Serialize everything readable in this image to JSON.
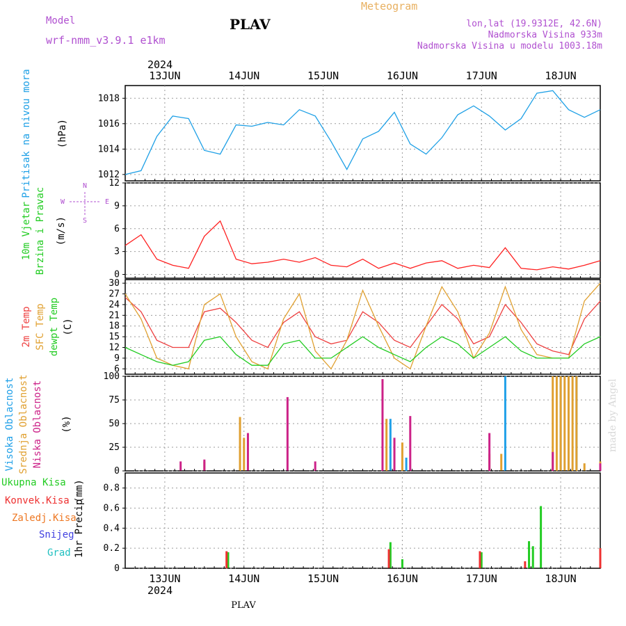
{
  "header": {
    "model_label": "Model",
    "model_name": "wrf-nmm_v3.9.1 e1km",
    "location": "PLAV",
    "title": "Meteogram",
    "coords": "lon,lat (19.9312E, 42.6N)",
    "elevation": "Nadmorska Visina 933m",
    "model_elevation": "Nadmorska Visina u modelu 1003.18m",
    "year": "2024",
    "footer_location": "PLAV",
    "watermark": "made by Angel"
  },
  "colors": {
    "pressure": "#1ea0e6",
    "wind_label": "#22cc22",
    "wind_speed": "#ff2020",
    "temp2m": "#ee4040",
    "sfc_temp": "#e0a030",
    "dewpoint": "#22cc22",
    "cloud_high": "#20a0e8",
    "cloud_mid": "#e0a030",
    "cloud_low": "#cc2288",
    "precip_total": "#22cc22",
    "precip_conv": "#ee3030",
    "precip_grid": "#ee7722",
    "snow": "#4040e0",
    "hail": "#20c0c0",
    "header_purple": "#b050d0",
    "header_orange": "#e8b060"
  },
  "chart_data": [
    {
      "type": "line",
      "panel": "pressure",
      "xlabel": "",
      "ylabel_main": "Pritisak na nivou mora",
      "ylabel_unit": "(hPa)",
      "ylim": [
        1011.5,
        1019
      ],
      "yticks": [
        1012,
        1014,
        1016,
        1018
      ],
      "x_day_labels": [
        "13JUN",
        "14JUN",
        "15JUN",
        "16JUN",
        "17JUN",
        "18JUN"
      ],
      "x": [
        0.0,
        0.2,
        0.4,
        0.6,
        0.8,
        1.0,
        1.2,
        1.4,
        1.6,
        1.8,
        2.0,
        2.2,
        2.4,
        2.6,
        2.8,
        3.0,
        3.2,
        3.4,
        3.6,
        3.8,
        4.0,
        4.2,
        4.4,
        4.6,
        4.8,
        5.0,
        5.2,
        5.4,
        5.6,
        5.8,
        6.0
      ],
      "series": [
        {
          "name": "Pritisak na nivou mora",
          "values": [
            1012.0,
            1012.3,
            1015.0,
            1016.6,
            1016.4,
            1013.9,
            1013.6,
            1015.9,
            1015.8,
            1016.1,
            1015.9,
            1017.1,
            1016.6,
            1014.6,
            1012.4,
            1014.8,
            1015.4,
            1016.9,
            1014.4,
            1013.6,
            1014.9,
            1016.7,
            1017.4,
            1016.6,
            1015.5,
            1016.4,
            1018.4,
            1018.6,
            1017.1,
            1016.5,
            1017.1
          ]
        }
      ]
    },
    {
      "type": "line",
      "panel": "wind",
      "ylabel_main": "10m Vjetar",
      "ylabel_sub": "Brzina i Pravac",
      "ylabel_unit": "(m/s)",
      "compass": [
        "N",
        "W",
        "E",
        "S"
      ],
      "ylim": [
        -0.5,
        12
      ],
      "yticks": [
        0,
        3,
        6,
        9,
        12
      ],
      "x": [
        0.0,
        0.2,
        0.4,
        0.6,
        0.8,
        1.0,
        1.2,
        1.4,
        1.6,
        1.8,
        2.0,
        2.2,
        2.4,
        2.6,
        2.8,
        3.0,
        3.2,
        3.4,
        3.6,
        3.8,
        4.0,
        4.2,
        4.4,
        4.6,
        4.8,
        5.0,
        5.2,
        5.4,
        5.6,
        5.8,
        6.0
      ],
      "series": [
        {
          "name": "10m Vjetar",
          "values": [
            3.8,
            5.2,
            2.0,
            1.2,
            0.8,
            5.0,
            7.0,
            2.0,
            1.4,
            1.6,
            2.0,
            1.6,
            2.2,
            1.2,
            1.0,
            2.0,
            0.8,
            1.5,
            0.8,
            1.5,
            1.8,
            0.8,
            1.2,
            0.9,
            3.5,
            0.8,
            0.6,
            1.0,
            0.7,
            1.2,
            1.8
          ]
        }
      ]
    },
    {
      "type": "line",
      "panel": "temperature",
      "ylabel_lines": [
        "2m Temp",
        "SFC Temp",
        "dewpt Temp"
      ],
      "ylabel_unit": "(C)",
      "ylim": [
        4.5,
        31
      ],
      "yticks": [
        6,
        9,
        12,
        15,
        18,
        21,
        24,
        27,
        30
      ],
      "x": [
        0.0,
        0.2,
        0.4,
        0.6,
        0.8,
        1.0,
        1.2,
        1.4,
        1.6,
        1.8,
        2.0,
        2.2,
        2.4,
        2.6,
        2.8,
        3.0,
        3.2,
        3.4,
        3.6,
        3.8,
        4.0,
        4.2,
        4.4,
        4.6,
        4.8,
        5.0,
        5.2,
        5.4,
        5.6,
        5.8,
        6.0
      ],
      "series": [
        {
          "name": "2m Temp",
          "values": [
            26,
            22,
            14,
            12,
            12,
            22,
            23,
            19,
            14,
            12,
            19,
            22,
            15,
            13,
            14,
            22,
            19,
            14,
            12,
            18,
            24,
            20,
            13,
            15,
            24,
            19,
            13,
            11,
            10,
            20,
            25
          ]
        },
        {
          "name": "SFC Temp",
          "values": [
            27,
            20,
            9,
            7,
            6,
            24,
            27,
            15,
            8,
            6,
            20,
            27,
            11,
            6,
            14,
            28,
            18,
            9,
            6,
            18,
            29,
            22,
            9,
            16,
            29,
            17,
            10,
            9,
            9,
            25,
            30
          ]
        },
        {
          "name": "dewpt Temp",
          "values": [
            12,
            10,
            8,
            7,
            8,
            14,
            15,
            10,
            7,
            7,
            13,
            14,
            9,
            9,
            12,
            15,
            12,
            10,
            8,
            12,
            15,
            13,
            9,
            12,
            15,
            11,
            9,
            9,
            9,
            13,
            15
          ]
        }
      ]
    },
    {
      "type": "bar",
      "panel": "clouds",
      "ylabel_lines": [
        "Visoka Oblacnost",
        "Srednja Oblacnost",
        "Niska Oblacnost"
      ],
      "ylabel_unit": "(%)",
      "ylim": [
        0,
        100
      ],
      "yticks": [
        0,
        25,
        50,
        75,
        100
      ],
      "series": [
        {
          "name": "Visoka Oblacnost",
          "values": [
            [
              3.35,
              55
            ],
            [
              3.55,
              14
            ],
            [
              4.8,
              100
            ],
            [
              5.5,
              100
            ],
            [
              5.6,
              100
            ],
            [
              5.7,
              100
            ],
            [
              6.0,
              4
            ]
          ]
        },
        {
          "name": "Srednja Oblacnost",
          "values": [
            [
              1.0,
              10
            ],
            [
              1.45,
              57
            ],
            [
              1.5,
              35
            ],
            [
              3.3,
              55
            ],
            [
              3.5,
              30
            ],
            [
              4.6,
              18
            ],
            [
              4.75,
              18
            ],
            [
              5.4,
              100
            ],
            [
              5.45,
              100
            ],
            [
              5.5,
              100
            ],
            [
              5.55,
              100
            ],
            [
              5.6,
              100
            ],
            [
              5.65,
              100
            ],
            [
              5.7,
              100
            ],
            [
              5.8,
              8
            ],
            [
              6.0,
              10
            ]
          ]
        },
        {
          "name": "Niska Oblacnost",
          "values": [
            [
              0.7,
              10
            ],
            [
              1.0,
              12
            ],
            [
              1.55,
              40
            ],
            [
              2.05,
              78
            ],
            [
              2.4,
              10
            ],
            [
              3.25,
              97
            ],
            [
              3.4,
              35
            ],
            [
              3.6,
              58
            ],
            [
              4.6,
              40
            ],
            [
              5.4,
              20
            ],
            [
              6.0,
              8
            ]
          ]
        }
      ]
    },
    {
      "type": "bar",
      "panel": "precip",
      "ylabel_main": "1hr Precip",
      "ylabel_unit": "(mm)",
      "legend": [
        "Ukupna Kisa",
        "Konvek.Kisa",
        "Zaledj.Kisa",
        "Snijeg",
        "Grad"
      ],
      "ylim": [
        0,
        0.95
      ],
      "yticks": [
        0,
        0.2,
        0.4,
        0.6,
        0.8
      ],
      "series": [
        {
          "name": "Ukupna Kisa",
          "values": [
            [
              1.3,
              0.16
            ],
            [
              3.35,
              0.26
            ],
            [
              3.5,
              0.09
            ],
            [
              4.5,
              0.16
            ],
            [
              5.1,
              0.27
            ],
            [
              5.15,
              0.22
            ],
            [
              5.25,
              0.62
            ],
            [
              6.0,
              0.2
            ]
          ]
        },
        {
          "name": "Konvek.Kisa",
          "values": [
            [
              1.28,
              0.17
            ],
            [
              3.33,
              0.19
            ],
            [
              4.48,
              0.17
            ],
            [
              5.05,
              0.07
            ],
            [
              6.0,
              0.2
            ]
          ]
        }
      ]
    }
  ]
}
